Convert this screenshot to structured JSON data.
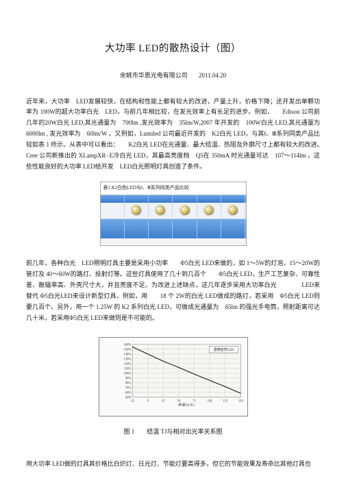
{
  "title": "大功率 LED的散热设计（图）",
  "company": "余姚市华恩光电有限公司",
  "date": "2011.04.20",
  "p1": "近年来，大功率　LED发展较快，在结构和性能上都有较大的改进，产量上升，价格下降；还开发出单颗功率为 100W的超大功率白光　LED，与前几年相比较，在发光效率上有长足的进步。例如，　　Edison 公司前几年的20W白光 LED,其光通量为　700lm ,发光效率为　35lm/W,2007 年开发的　100W白光 LED,其光通量为　6000lm , 发光效率为　60lm/W 。又例如，Lumiled 公司最近开发的　K2白光 LED，与其Ⅰ、Ⅲ系列同类产品比较如表 1 所示。从表中可以看出：　　K2白光 LED在光通量、最大结温、热阻及外廓尺寸上都有较大的改进。　　Cree 公司新推出的 XLampXR−E冷白光 LED，其最高亮度档　Q5在 350mA 时光通量可达　107～114lm 。这些性能良好的大功率 LED给开发　LED白光照明灯具创造了条件。",
  "p2": "前几年，各种白光　LED照明灯具主要是采用小功率　　Φ5白光 LED来做的，如 1～5W的灯泡，15～20W的管灯及 40～60W的路灯、投射灯等。这些灯具使用了几十到几百个　　Φ5白光 LED，生产工艺复杂、可靠性差、散辐率高、外壳尺寸大，并且亮度不足。为改进上述缺点，这几年逐步采用大功率白光　　　　LED来替代 Φ5白光LED来设计新型灯具，例如，用　　18 个 2W的白光 LED做成的路灯，若采用　Φ5白光 LED则要几百个。另外，用一个 1.25W 的 K2 系列白光 LED，可做成光通量为　65lm 的强光手电筒，照射距离可达几十米，若采用Φ5白光 LED来做则是不可能的。",
  "p3": "用大功率 LED做的灯具其价格比白炽灯、日光灯、节能灯要高得多，但它的节能效果及寿命比其他灯具也",
  "fig1": {
    "caption": "表1  K2白色LED与Ⅰ、Ⅲ系列同类产品比较",
    "headers": [
      "",
      "",
      "",
      "",
      "",
      ""
    ],
    "led_count": 5
  },
  "fig2": {
    "caption": "图 1　　结温 TJ与相对出光率关系图",
    "badge": "透镜自然LED",
    "ylabel_vals": [
      "160%",
      "150%",
      "140%",
      "130%",
      "120%",
      "110%",
      "100%",
      "90%",
      "80%",
      "70%",
      "60%",
      "50%"
    ],
    "xlabel_vals": [
      "-25",
      "0",
      "25",
      "50",
      "75",
      "100",
      "125",
      "150"
    ],
    "xaxis_title": "结温Tj(℃)",
    "grid_color": "#bfbfbf",
    "line_color": "#2b2b2b",
    "line_pts": [
      [
        -25,
        155
      ],
      [
        0,
        140
      ],
      [
        25,
        125
      ],
      [
        50,
        112
      ],
      [
        75,
        98
      ],
      [
        100,
        85
      ],
      [
        125,
        72
      ],
      [
        150,
        58
      ]
    ],
    "xlim": [
      -25,
      150
    ],
    "ylim": [
      50,
      160
    ],
    "background": "#f6f6f4"
  }
}
